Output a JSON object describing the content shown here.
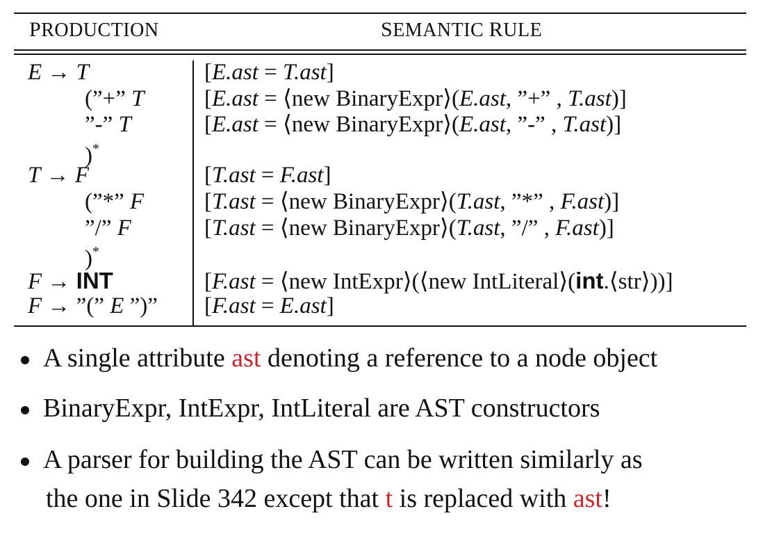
{
  "table": {
    "header": {
      "production_first": "P",
      "production_rest": "RODUCTION",
      "semantic_first": "S",
      "semantic_mid": "EMANTIC ",
      "semantic_rule_first": "R",
      "semantic_rule_rest": "ULE"
    },
    "rows": [
      {
        "production": [
          "E",
          " → ",
          "T"
        ],
        "rule": [
          "[",
          "E.ast",
          " = ",
          "T.ast",
          "]"
        ]
      },
      {
        "production": [
          "(”+” ",
          "T"
        ],
        "rule": [
          "[",
          "E.ast",
          " = ",
          "⟨new BinaryExpr⟩",
          "(",
          "E.ast",
          ", ”+” , ",
          "T.ast",
          ")]"
        ]
      },
      {
        "production": [
          "”-” ",
          "T"
        ],
        "rule": [
          "[",
          "E.ast",
          " = ",
          "⟨new BinaryExpr⟩",
          "(",
          "E.ast",
          ", ”-” , ",
          "T.ast",
          ")]"
        ]
      },
      {
        "production": [
          ")",
          "*"
        ],
        "rule": []
      },
      {
        "production": [
          "T",
          " → ",
          "F"
        ],
        "rule": [
          "[",
          "T.ast",
          " = ",
          "F.ast",
          "]"
        ]
      },
      {
        "production": [
          "(”*” ",
          "F"
        ],
        "rule": [
          "[",
          "T.ast",
          " = ",
          "⟨new BinaryExpr⟩",
          "(",
          "T.ast",
          ", ”*” , ",
          "F.ast",
          ")]"
        ]
      },
      {
        "production": [
          "”/” ",
          "F"
        ],
        "rule": [
          "[",
          "T.ast",
          " = ",
          "⟨new BinaryExpr⟩",
          "(",
          "T.ast",
          ", ”/” , ",
          "F.ast",
          ")]"
        ]
      },
      {
        "production": [
          ")",
          "*"
        ],
        "rule": []
      },
      {
        "production": [
          "F",
          " → ",
          "INT"
        ],
        "rule": [
          "[",
          "F.ast",
          " = ",
          "⟨new IntExpr⟩",
          "(⟨new IntLiteral⟩(",
          "int",
          ".⟨str⟩))]"
        ]
      },
      {
        "production": [
          "F",
          " → ”(” ",
          "E",
          " ”)”"
        ],
        "rule": [
          "[",
          "F.ast",
          " = ",
          "E.ast",
          "]"
        ]
      }
    ]
  },
  "bullets": [
    {
      "parts": [
        "A single attribute ",
        "ast",
        " denoting a reference to a node object"
      ]
    },
    {
      "parts": [
        "BinaryExpr, IntExpr, IntLiteral are AST constructors"
      ]
    },
    {
      "parts": [
        "A parser for building the AST can be written similarly as"
      ],
      "cont": [
        "the one in Slide 342 except that ",
        "t",
        " is replaced with ",
        "ast",
        "!"
      ]
    }
  ]
}
